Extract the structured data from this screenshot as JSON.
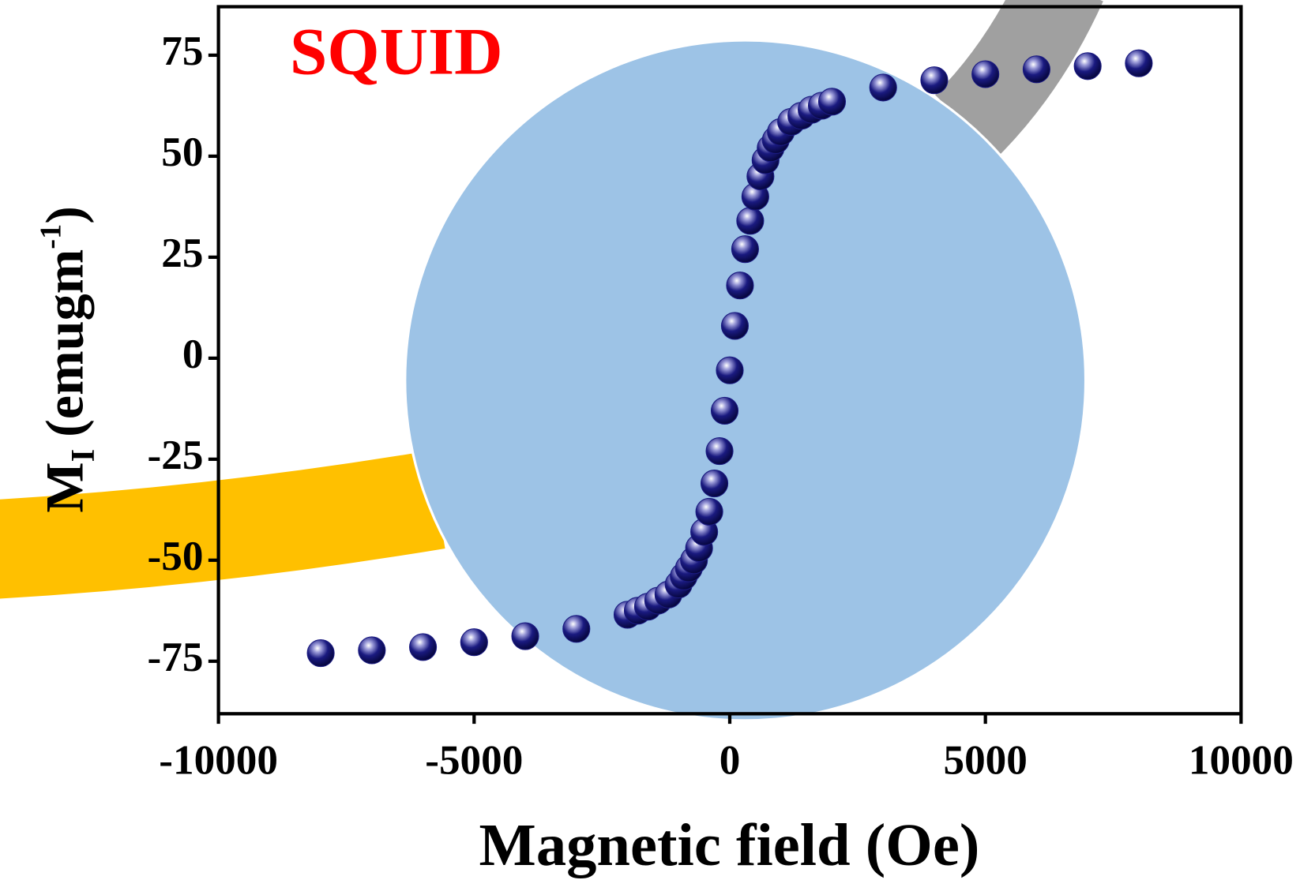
{
  "chart_data": {
    "type": "scatter",
    "title": "SQUID",
    "title_color": "#ff0000",
    "x_label": "Magnetic field (Oe)",
    "y_label": {
      "main": "M",
      "sub": "I",
      "unit_open": "(emugm",
      "sup": "-1",
      "unit_close": ")"
    },
    "xlim": [
      -10000,
      10000
    ],
    "ylim": [
      -88,
      87
    ],
    "xticks": [
      -10000,
      -5000,
      0,
      5000,
      10000
    ],
    "yticks": [
      -75,
      -50,
      -25,
      0,
      25,
      50,
      75
    ],
    "series": [
      {
        "name": "M",
        "color": "#1a1a80",
        "x": [
          -8000,
          -7000,
          -6000,
          -5000,
          -4000,
          -3000,
          -2000,
          -1800,
          -1600,
          -1400,
          -1200,
          -1000,
          -900,
          -800,
          -700,
          -600,
          -500,
          -400,
          -300,
          -200,
          -100,
          0,
          100,
          200,
          300,
          400,
          500,
          600,
          700,
          800,
          900,
          1000,
          1200,
          1400,
          1600,
          1800,
          2000,
          3000,
          4000,
          5000,
          6000,
          7000,
          8000
        ],
        "values": [
          -73,
          -72.3,
          -71.5,
          -70.3,
          -68.8,
          -67,
          -63.5,
          -62.5,
          -61.5,
          -60,
          -58.5,
          -56,
          -54,
          -52,
          -50,
          -47,
          -43,
          -38,
          -31,
          -23,
          -13,
          -3,
          8,
          18,
          27,
          34,
          40,
          45,
          49,
          52,
          54,
          56,
          58.5,
          60,
          61.5,
          62.5,
          63.5,
          67,
          68.8,
          70.3,
          71.5,
          72.3,
          73
        ]
      }
    ]
  }
}
